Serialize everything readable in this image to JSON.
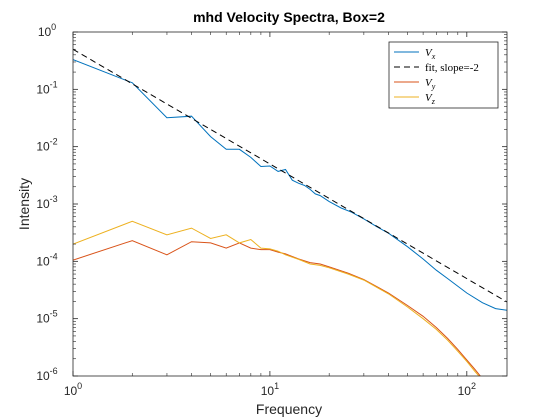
{
  "chart_data": {
    "type": "line",
    "title": "mhd Velocity Spectra, Box=2",
    "xlabel": "Frequency",
    "ylabel": "Intensity",
    "xscale": "log",
    "yscale": "log",
    "xlim": [
      1,
      160
    ],
    "ylim": [
      1e-06,
      1
    ],
    "grid": false,
    "legend_position": "top-right",
    "x_ticks": [
      {
        "value": 1,
        "base": "10",
        "exp": "0"
      },
      {
        "value": 10,
        "base": "10",
        "exp": "1"
      },
      {
        "value": 100,
        "base": "10",
        "exp": "2"
      }
    ],
    "y_ticks": [
      {
        "value": 1e-06,
        "base": "10",
        "exp": "-6"
      },
      {
        "value": 1e-05,
        "base": "10",
        "exp": "-5"
      },
      {
        "value": 0.0001,
        "base": "10",
        "exp": "-4"
      },
      {
        "value": 0.001,
        "base": "10",
        "exp": "-3"
      },
      {
        "value": 0.01,
        "base": "10",
        "exp": "-2"
      },
      {
        "value": 0.1,
        "base": "10",
        "exp": "-1"
      },
      {
        "value": 1,
        "base": "10",
        "exp": "0"
      }
    ],
    "series": [
      {
        "name": "Vx",
        "legend_main": "V",
        "legend_sub": "x",
        "color": "#0072BD",
        "dash": "solid",
        "x": [
          1,
          2,
          3,
          4,
          5,
          6,
          7,
          8,
          9,
          10,
          11,
          12,
          13,
          14,
          15,
          16,
          17,
          18,
          20,
          23,
          26,
          30,
          35,
          40,
          50,
          60,
          70,
          80,
          100,
          120,
          140,
          160
        ],
        "y": [
          0.33,
          0.13,
          0.032,
          0.034,
          0.015,
          0.009,
          0.009,
          0.0065,
          0.0045,
          0.0046,
          0.0037,
          0.004,
          0.0026,
          0.0023,
          0.0021,
          0.0018,
          0.0015,
          0.0014,
          0.0011,
          0.00085,
          0.00072,
          0.00055,
          0.0004,
          0.00031,
          0.00018,
          0.00011,
          7e-05,
          5e-05,
          2.8e-05,
          1.9e-05,
          1.5e-05,
          1.4e-05
        ]
      },
      {
        "name": "fit, slope=-2",
        "legend_main": "fit, slope=-2",
        "legend_sub": "",
        "color": "#000000",
        "dash": "dashed",
        "x": [
          1,
          160
        ],
        "y": [
          0.5,
          1.95e-05
        ]
      },
      {
        "name": "Vy",
        "legend_main": "V",
        "legend_sub": "y",
        "color": "#D95319",
        "dash": "solid",
        "x": [
          1,
          2,
          3,
          4,
          5,
          6,
          7,
          8,
          9,
          10,
          11,
          12,
          14,
          16,
          18,
          20,
          25,
          30,
          40,
          50,
          60,
          70,
          80,
          90,
          100,
          110,
          120
        ],
        "y": [
          0.000105,
          0.00023,
          0.00013,
          0.00022,
          0.00021,
          0.00017,
          0.00021,
          0.00017,
          0.00016,
          0.00016,
          0.000145,
          0.000135,
          0.00011,
          9.5e-05,
          9e-05,
          8e-05,
          6.2e-05,
          4.8e-05,
          2.8e-05,
          1.7e-05,
          1.1e-05,
          7e-06,
          4.5e-06,
          2.9e-06,
          1.9e-06,
          1.3e-06,
          9e-07
        ]
      },
      {
        "name": "Vz",
        "legend_main": "V",
        "legend_sub": "z",
        "color": "#EDB120",
        "dash": "solid",
        "x": [
          1,
          2,
          3,
          4,
          5,
          6,
          7,
          8,
          9,
          10,
          11,
          12,
          14,
          16,
          18,
          20,
          25,
          30,
          40,
          50,
          60,
          70,
          80,
          90,
          100,
          110,
          120
        ],
        "y": [
          0.0002,
          0.0005,
          0.00029,
          0.00038,
          0.00025,
          0.00029,
          0.00021,
          0.00024,
          0.00017,
          0.000165,
          0.00015,
          0.00013,
          0.000108,
          9e-05,
          8.5e-05,
          7.7e-05,
          6e-05,
          4.7e-05,
          2.7e-05,
          1.6e-05,
          1e-05,
          6.5e-06,
          4.2e-06,
          2.7e-06,
          1.8e-06,
          1.2e-06,
          8.5e-07
        ]
      }
    ]
  }
}
